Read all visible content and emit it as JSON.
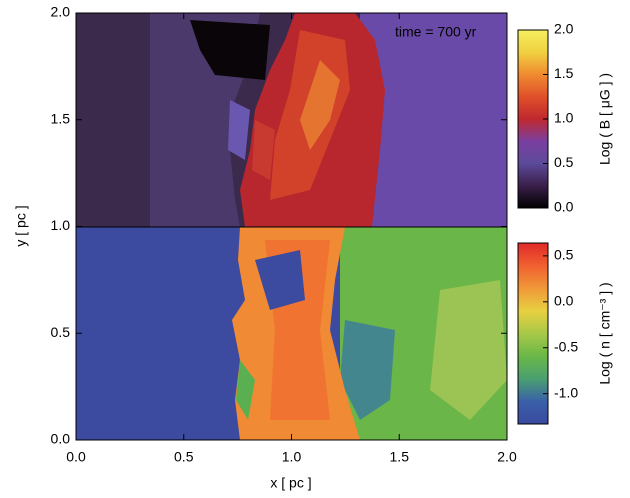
{
  "chart_data": {
    "type": "image",
    "xlabel": "x [ pc ]",
    "ylabel": "y [ pc ]",
    "annotation": "time = 700 yr",
    "xlim": [
      0,
      2
    ],
    "ylim": [
      0,
      2
    ],
    "xticks": [
      {
        "value": 0,
        "label": "0.0"
      },
      0.5,
      {
        "value": 1,
        "label": "1.0"
      },
      1.5,
      {
        "value": 2,
        "label": "2.0"
      }
    ],
    "yticks": [
      {
        "value": 0,
        "label": "0.0"
      },
      0.5,
      {
        "value": 1,
        "label": "1.0"
      },
      1.5,
      {
        "value": 2,
        "label": "2.0"
      }
    ],
    "colorbars": [
      {
        "label": "Log ( B [ μG ] )",
        "lim": [
          0,
          2
        ],
        "ticks": [
          {
            "value": 0,
            "label": "0.0"
          },
          0.5,
          {
            "value": 1,
            "label": "1.0"
          },
          1.5,
          {
            "value": 2,
            "label": "2.0"
          }
        ],
        "colors": [
          "#000000",
          "#3a1f4a",
          "#5c4a9a",
          "#7a3fa0",
          "#c0282e",
          "#e0502a",
          "#f08a30",
          "#f0d040",
          "#f4f060"
        ]
      },
      {
        "label": "Log ( n [ cm⁻³ ] )",
        "lim": [
          -1.33,
          0.64
        ],
        "ticks": [
          {
            "value": -1,
            "label": "-1.0"
          },
          -0.5,
          {
            "value": 0,
            "label": "0.0"
          },
          0.5
        ],
        "colors": [
          "#3a4aa0",
          "#3a60a8",
          "#4aa070",
          "#6ab848",
          "#a8c848",
          "#e8d040",
          "#f09838",
          "#f06030",
          "#e02a2a"
        ]
      }
    ]
  }
}
